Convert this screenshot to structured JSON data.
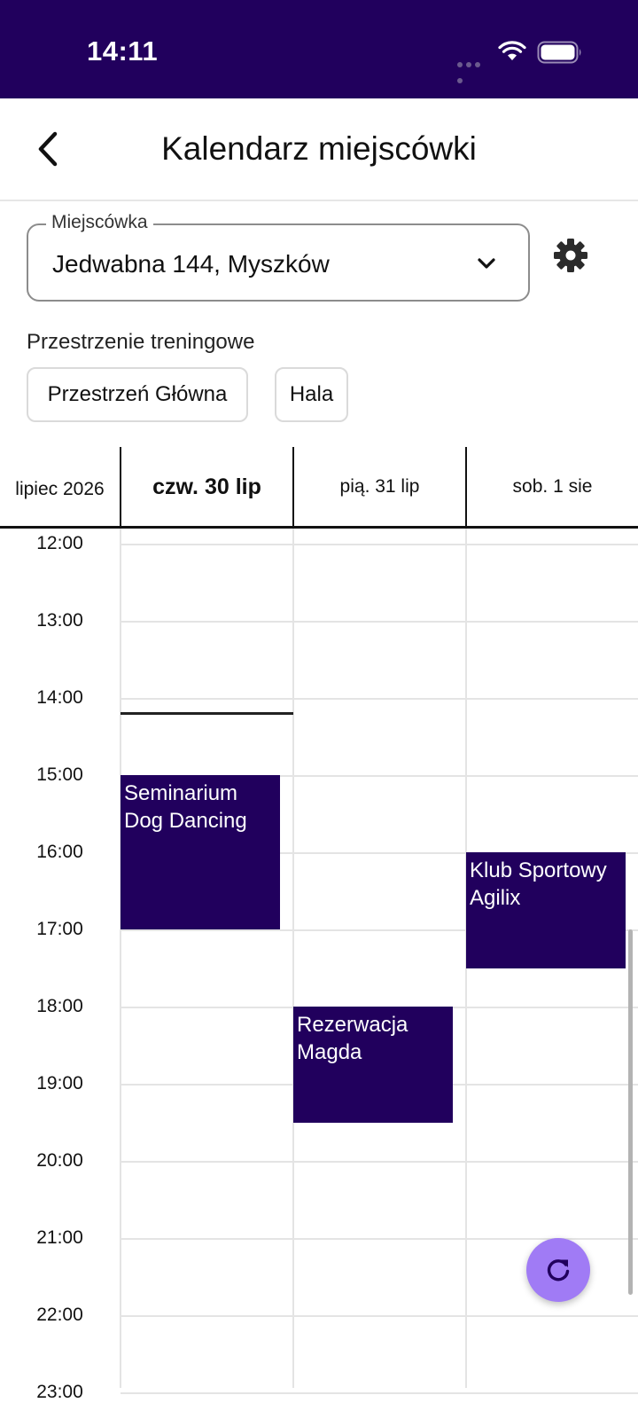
{
  "status_bar": {
    "time": "14:11"
  },
  "header": {
    "title": "Kalendarz miejscówki"
  },
  "venue": {
    "label": "Miejscówka",
    "value": "Jedwabna 144, Myszków"
  },
  "spaces": {
    "heading": "Przestrzenie treningowe",
    "chips": [
      "Przestrzeń Główna",
      "Hala"
    ]
  },
  "calendar": {
    "month": "lipiec 2026",
    "days": [
      {
        "label": "czw. 30 lip",
        "today": true
      },
      {
        "label": "pią. 31 lip",
        "today": false
      },
      {
        "label": "sob. 1 sie",
        "today": false
      }
    ],
    "hours": [
      "12:00",
      "13:00",
      "14:00",
      "15:00",
      "16:00",
      "17:00",
      "18:00",
      "19:00",
      "20:00",
      "21:00",
      "22:00",
      "23:00"
    ],
    "events": [
      {
        "title": "Seminarium Dog Dancing",
        "day": 0,
        "start": "15:00",
        "end": "17:00"
      },
      {
        "title": "Rezerwacja Magda",
        "day": 1,
        "start": "18:00",
        "end": "19:30"
      },
      {
        "title": "Klub Sportowy Agilix",
        "day": 2,
        "start": "16:00",
        "end": "17:30"
      }
    ],
    "now": "14:11"
  },
  "colors": {
    "primary": "#21005d",
    "fab": "#a07bf5"
  },
  "icons": {
    "back": "chevron-left-icon",
    "dropdown": "chevron-down-icon",
    "settings": "gear-icon",
    "refresh": "refresh-icon"
  }
}
